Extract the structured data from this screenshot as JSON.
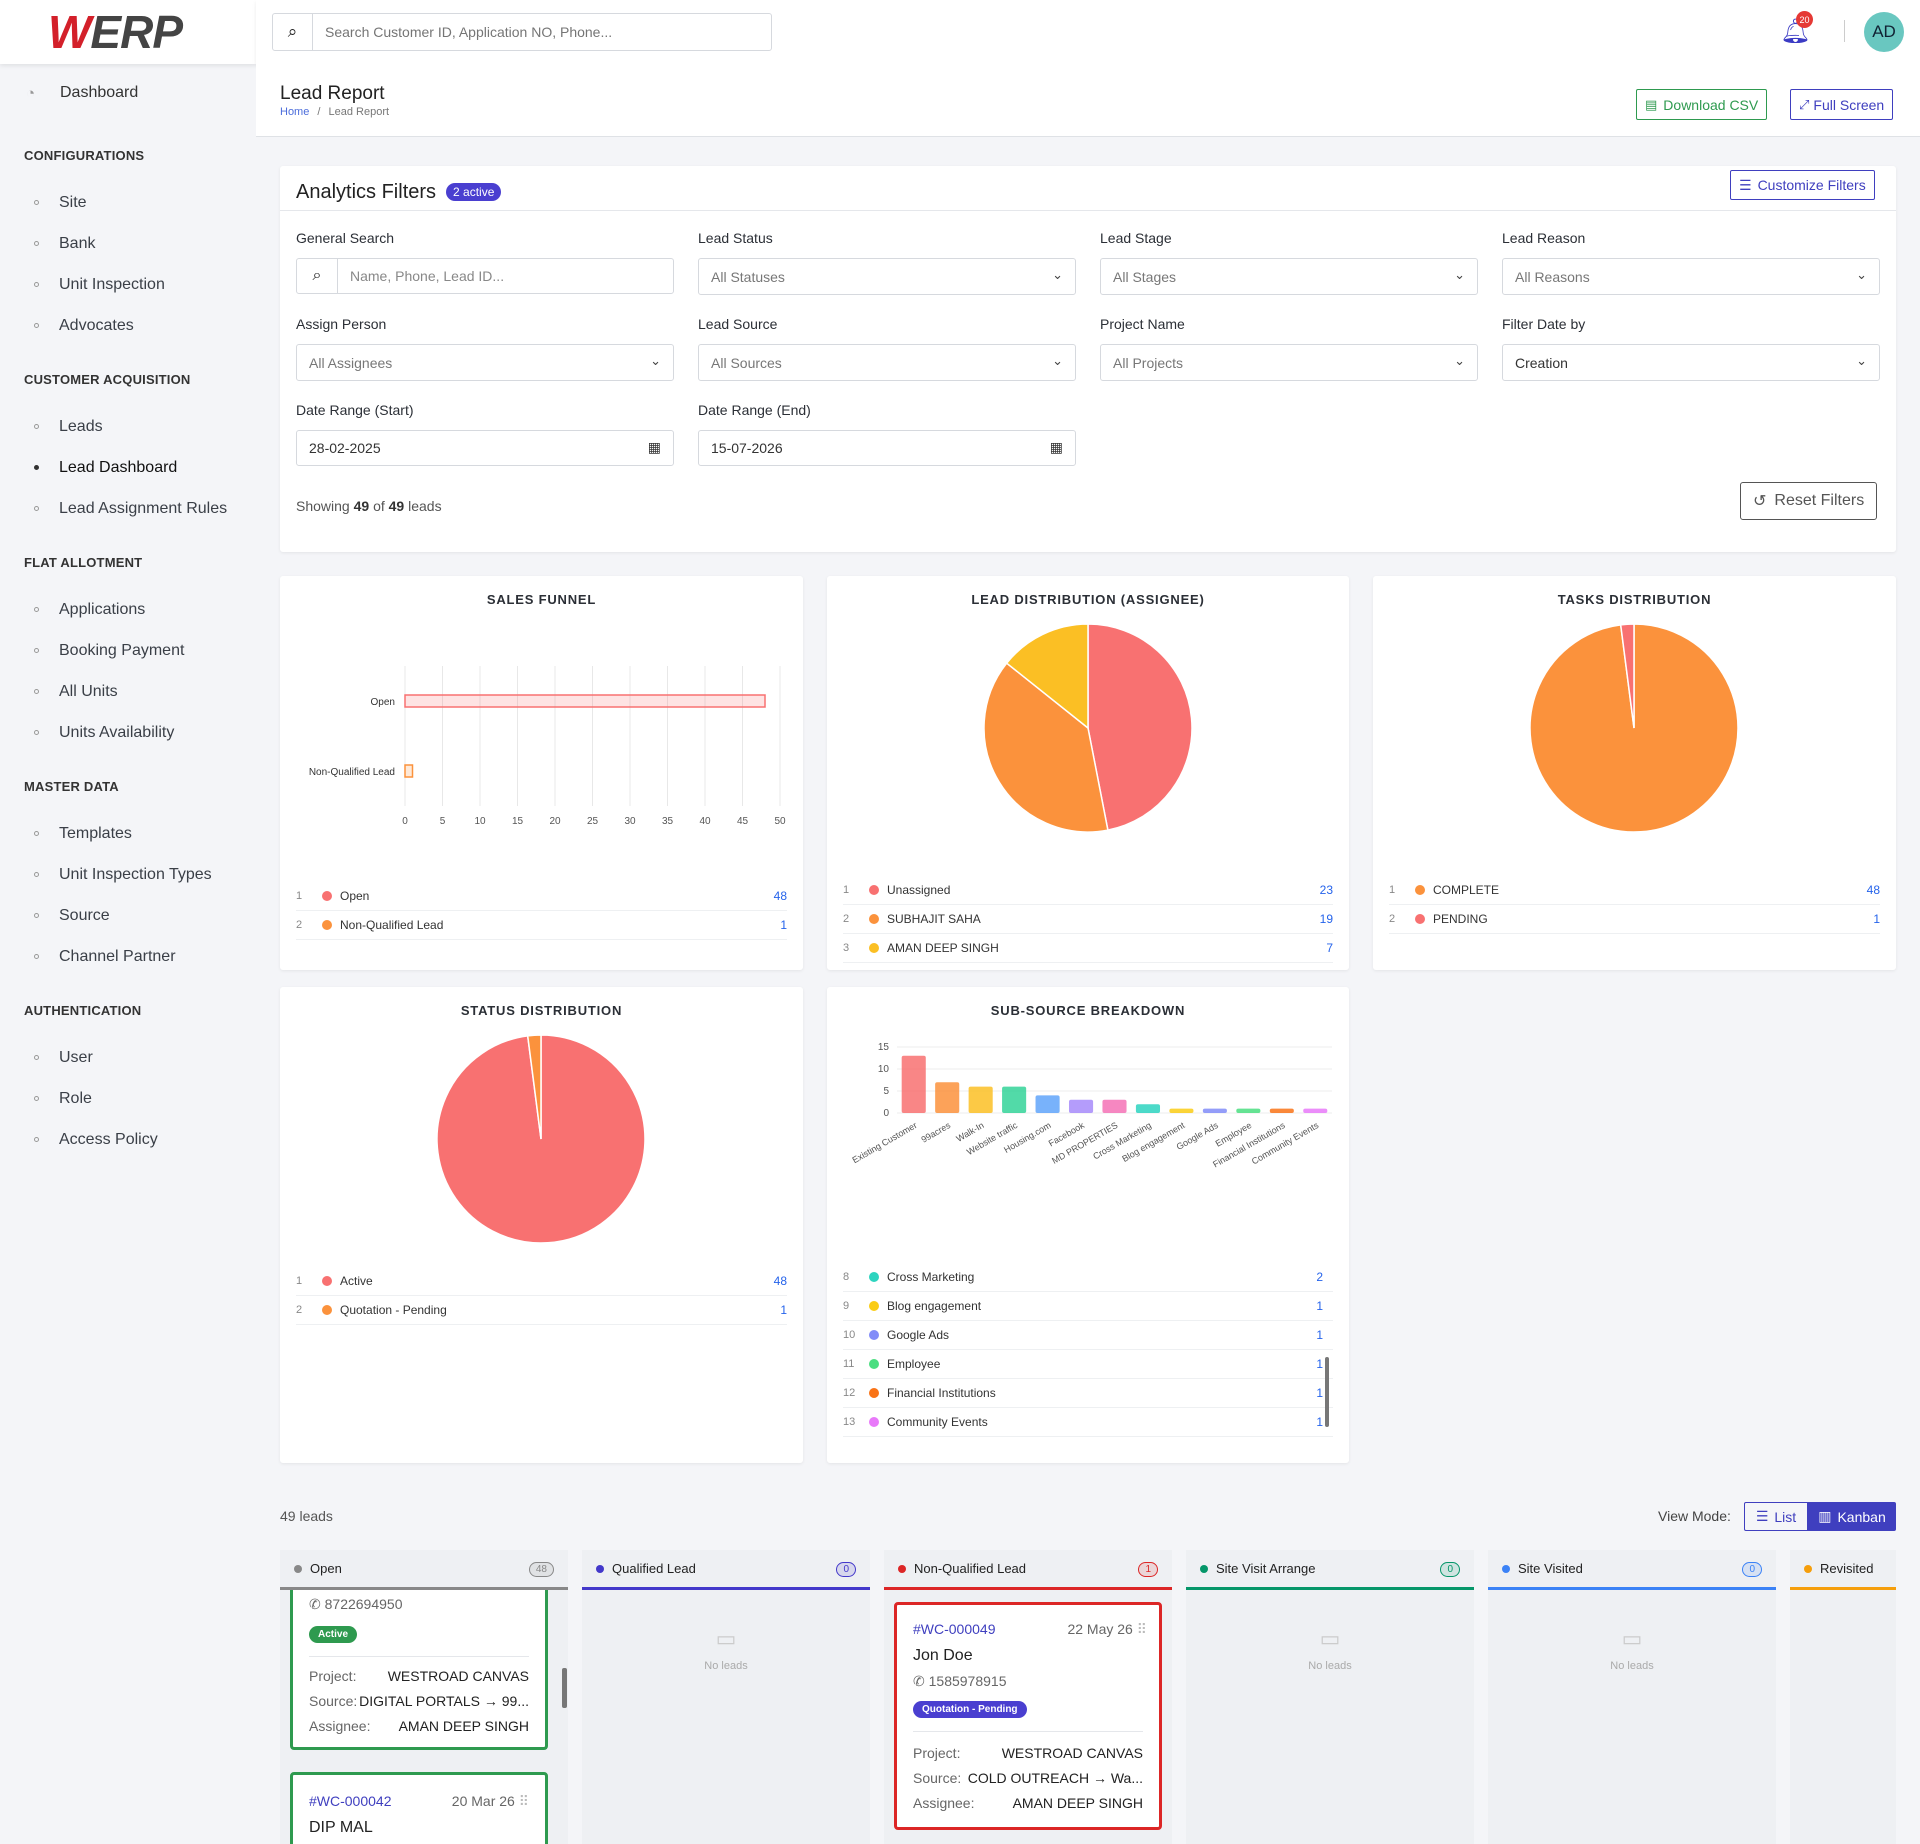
{
  "app": {
    "logo_w": "W",
    "logo_rest": "ERP",
    "user_initials": "AD",
    "notification_count": "20"
  },
  "search": {
    "placeholder": "Search Customer ID, Application NO, Phone..."
  },
  "sidebar": {
    "dashboard": "Dashboard",
    "sections": [
      {
        "title": "CONFIGURATIONS",
        "items": [
          "Site",
          "Bank",
          "Unit Inspection",
          "Advocates"
        ]
      },
      {
        "title": "CUSTOMER ACQUISITION",
        "items": [
          "Leads",
          "Lead Dashboard",
          "Lead Assignment Rules"
        ]
      },
      {
        "title": "FLAT ALLOTMENT",
        "items": [
          "Applications",
          "Booking Payment",
          "All Units",
          "Units Availability"
        ]
      },
      {
        "title": "MASTER DATA",
        "items": [
          "Templates",
          "Unit Inspection Types",
          "Source",
          "Channel Partner"
        ]
      },
      {
        "title": "AUTHENTICATION",
        "items": [
          "User",
          "Role",
          "Access Policy"
        ]
      }
    ],
    "active_item": "Lead Dashboard"
  },
  "header": {
    "title": "Lead Report",
    "breadcrumb_home": "Home",
    "breadcrumb_sep": "/",
    "breadcrumb_current": "Lead Report",
    "download_csv": "Download CSV",
    "full_screen": "Full Screen"
  },
  "filters": {
    "title": "Analytics Filters",
    "active_badge": "2 active",
    "customize": "Customize Filters",
    "general_search_label": "General Search",
    "general_search_placeholder": "Name, Phone, Lead ID...",
    "lead_status_label": "Lead Status",
    "lead_status_value": "All Statuses",
    "lead_stage_label": "Lead Stage",
    "lead_stage_value": "All Stages",
    "lead_reason_label": "Lead Reason",
    "lead_reason_value": "All Reasons",
    "assign_person_label": "Assign Person",
    "assign_person_value": "All Assignees",
    "lead_source_label": "Lead Source",
    "lead_source_value": "All Sources",
    "project_name_label": "Project Name",
    "project_name_value": "All Projects",
    "filter_date_label": "Filter Date by",
    "filter_date_value": "Creation",
    "date_start_label": "Date Range (Start)",
    "date_start_value": "28-02-2025",
    "date_end_label": "Date Range (End)",
    "date_end_value": "15-07-2026",
    "showing_prefix": "Showing",
    "showing_count": "49",
    "showing_of": "of",
    "showing_total": "49",
    "showing_suffix": "leads",
    "reset": "Reset Filters"
  },
  "charts": {
    "sales_funnel_title": "SALES FUNNEL",
    "lead_dist_title": "LEAD DISTRIBUTION (ASSIGNEE)",
    "tasks_title": "TASKS DISTRIBUTION",
    "status_title": "STATUS DISTRIBUTION",
    "subsource_title": "SUB-SOURCE BREAKDOWN"
  },
  "chart_data": [
    {
      "type": "bar",
      "title": "SALES FUNNEL",
      "orientation": "horizontal",
      "categories": [
        "Open",
        "Non-Qualified Lead"
      ],
      "values": [
        48,
        1
      ],
      "xlim": [
        0,
        50
      ],
      "xticks": [
        0,
        5,
        10,
        15,
        20,
        25,
        30,
        35,
        40,
        45,
        50
      ],
      "colors": [
        "#f87171",
        "#fb923c"
      ],
      "legend": [
        {
          "label": "Open",
          "value": 48
        },
        {
          "label": "Non-Qualified Lead",
          "value": 1
        }
      ]
    },
    {
      "type": "pie",
      "title": "LEAD DISTRIBUTION (ASSIGNEE)",
      "categories": [
        "Unassigned",
        "SUBHAJIT SAHA",
        "AMAN DEEP SINGH"
      ],
      "values": [
        23,
        19,
        7
      ],
      "colors": [
        "#f87171",
        "#fb923c",
        "#fbbf24"
      ]
    },
    {
      "type": "pie",
      "title": "TASKS DISTRIBUTION",
      "categories": [
        "COMPLETE",
        "PENDING"
      ],
      "values": [
        48,
        1
      ],
      "colors": [
        "#fb923c",
        "#f87171"
      ]
    },
    {
      "type": "pie",
      "title": "STATUS DISTRIBUTION",
      "categories": [
        "Active",
        "Quotation - Pending"
      ],
      "values": [
        48,
        1
      ],
      "colors": [
        "#f87171",
        "#fb923c"
      ]
    },
    {
      "type": "bar",
      "title": "SUB-SOURCE BREAKDOWN",
      "categories": [
        "Existing Customer",
        "99acres",
        "Walk-In",
        "Website traffic",
        "Housing.com",
        "Facebook",
        "MD PROPERTIES",
        "Cross Marketing",
        "Blog engagement",
        "Google Ads",
        "Employee",
        "Financial Institutions",
        "Community Events"
      ],
      "values": [
        13,
        7,
        6,
        6,
        4,
        3,
        3,
        2,
        1,
        1,
        1,
        1,
        1
      ],
      "ylim": [
        0,
        15
      ],
      "yticks": [
        0,
        5,
        10,
        15
      ],
      "colors": [
        "#f87171",
        "#fb923c",
        "#fbbf24",
        "#34d399",
        "#60a5fa",
        "#a78bfa",
        "#f472b6",
        "#2dd4bf",
        "#facc15",
        "#818cf8",
        "#4ade80",
        "#f97316",
        "#e879f9"
      ],
      "legend_visible": [
        {
          "n": "8",
          "label": "Cross Marketing",
          "value": "2"
        },
        {
          "n": "9",
          "label": "Blog engagement",
          "value": "1"
        },
        {
          "n": "10",
          "label": "Google Ads",
          "value": "1"
        },
        {
          "n": "11",
          "label": "Employee",
          "value": "1"
        },
        {
          "n": "12",
          "label": "Financial Institutions",
          "value": "1"
        },
        {
          "n": "13",
          "label": "Community Events",
          "value": "1"
        }
      ]
    }
  ],
  "kanban": {
    "leads_count": "49 leads",
    "view_mode_label": "View Mode:",
    "list": "List",
    "kanban": "Kanban",
    "no_leads": "No leads",
    "columns": [
      {
        "name": "Open",
        "count": "48",
        "color": "#888888"
      },
      {
        "name": "Qualified Lead",
        "count": "0",
        "color": "#4338ca"
      },
      {
        "name": "Non-Qualified Lead",
        "count": "1",
        "color": "#dc2626"
      },
      {
        "name": "Site Visit Arrange",
        "count": "0",
        "color": "#059669"
      },
      {
        "name": "Site Visited",
        "count": "0",
        "color": "#3b82f6"
      },
      {
        "name": "Revisited",
        "count": "",
        "color": "#f59e0b"
      }
    ],
    "open_card1": {
      "phone": "8722694950",
      "status": "Active",
      "project_label": "Project:",
      "project": "WESTROAD CANVAS",
      "source_label": "Source:",
      "source": "DIGITAL PORTALS → 99...",
      "assignee_label": "Assignee:",
      "assignee": "AMAN DEEP SINGH"
    },
    "open_card2": {
      "id": "#WC-000042",
      "date": "20 Mar 26",
      "name": "DIP MAL"
    },
    "nq_card": {
      "id": "#WC-000049",
      "date": "22 May 26",
      "name": "Jon Doe",
      "phone": "1585978915",
      "status": "Quotation - Pending",
      "project_label": "Project:",
      "project": "WESTROAD CANVAS",
      "source_label": "Source:",
      "source": "COLD OUTREACH → Wa...",
      "assignee_label": "Assignee:",
      "assignee": "AMAN DEEP SINGH"
    }
  }
}
